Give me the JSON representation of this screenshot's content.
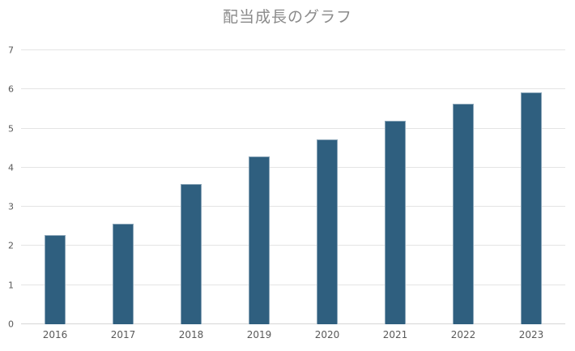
{
  "page": {
    "background_color": "#ffffff"
  },
  "chart_data": {
    "type": "bar",
    "title": "配当成長のグラフ",
    "categories": [
      "2016",
      "2017",
      "2018",
      "2019",
      "2020",
      "2021",
      "2022",
      "2023"
    ],
    "values": [
      2.28,
      2.56,
      3.59,
      4.28,
      4.72,
      5.2,
      5.64,
      5.92
    ],
    "series_name": "配当",
    "xlabel": "",
    "ylabel": "",
    "ylim": [
      0,
      7
    ],
    "yticks": [
      0,
      1,
      2,
      3,
      4,
      5,
      6,
      7
    ],
    "grid": "horizontal",
    "legend": "none",
    "colors": {
      "bar_fill": "#2F5F7F",
      "bar_border": "#8AA5B8",
      "gridline": "#E4E4E4",
      "axis_line": "#D6D6D6",
      "tick_label": "#595959",
      "title": "#8A8A8A"
    }
  }
}
